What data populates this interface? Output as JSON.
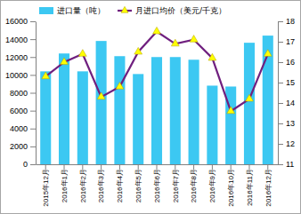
{
  "chart_data": {
    "type": "bar",
    "categories": [
      "2015年12月",
      "2016年1月",
      "2016年2月",
      "2016年3月",
      "2016年4月",
      "2016年5月",
      "2016年6月",
      "2016年7月",
      "2016年8月",
      "2016年9月",
      "2016年10月",
      "2016年11月",
      "2016年12月"
    ],
    "series": [
      {
        "name": "进口量（吨）",
        "type": "bar",
        "color": "#3cc8f2",
        "values": [
          10400,
          12400,
          10400,
          13800,
          12100,
          10100,
          12000,
          12000,
          11700,
          8800,
          8700,
          13600,
          14400
        ]
      },
      {
        "name": "月进口均价（美元/千克）",
        "type": "line",
        "axis": "y2",
        "color": "#70207f",
        "marker": "triangle",
        "line_style": "solid",
        "values": [
          15.3,
          16.0,
          16.4,
          14.3,
          14.8,
          16.5,
          17.5,
          16.9,
          17.1,
          16.2,
          13.6,
          14.2,
          16.4
        ]
      }
    ],
    "ylim": [
      0,
      16000
    ],
    "yticks": [
      0,
      2000,
      4000,
      6000,
      8000,
      10000,
      12000,
      14000,
      16000
    ],
    "y2lim": [
      11,
      18
    ],
    "y2ticks": [
      11,
      12,
      13,
      14,
      15,
      16,
      17,
      18
    ],
    "grid": false,
    "legend": "top"
  }
}
